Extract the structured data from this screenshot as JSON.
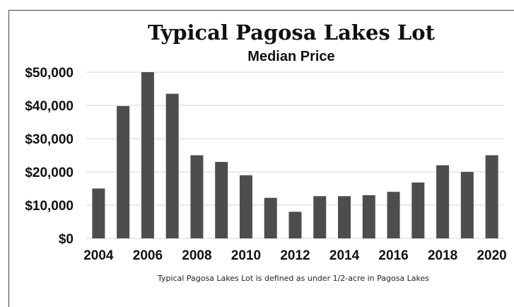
{
  "chart_data": {
    "type": "bar",
    "title": "Typical Pagosa Lakes Lot",
    "subtitle": "Median Price",
    "xlabel": "",
    "ylabel": "",
    "categories": [
      "2004",
      "2005",
      "2006",
      "2007",
      "2008",
      "2009",
      "2010",
      "2011",
      "2012",
      "2013",
      "2014",
      "2015",
      "2016",
      "2017",
      "2018",
      "2019",
      "2020"
    ],
    "values": [
      15000,
      39800,
      50000,
      43500,
      25000,
      23000,
      19000,
      12200,
      8000,
      12700,
      12700,
      13000,
      14000,
      16800,
      22000,
      20000,
      25000
    ],
    "x_tick_labels": [
      "2004",
      "2006",
      "2008",
      "2010",
      "2012",
      "2014",
      "2016",
      "2018",
      "2020"
    ],
    "y_tick_labels": [
      "$0",
      "$10,000",
      "$20,000",
      "$30,000",
      "$40,000",
      "$50,000"
    ],
    "y_tick_values": [
      0,
      10000,
      20000,
      30000,
      40000,
      50000
    ],
    "ylim": [
      0,
      50000
    ],
    "grid": true,
    "legend": "none",
    "bar_color": "#4d4d4d",
    "grid_color": "#d4d4d4",
    "footnote": "Typical Pagosa Lakes Lot is defined as under 1/2-acre in Pagosa Lakes"
  }
}
